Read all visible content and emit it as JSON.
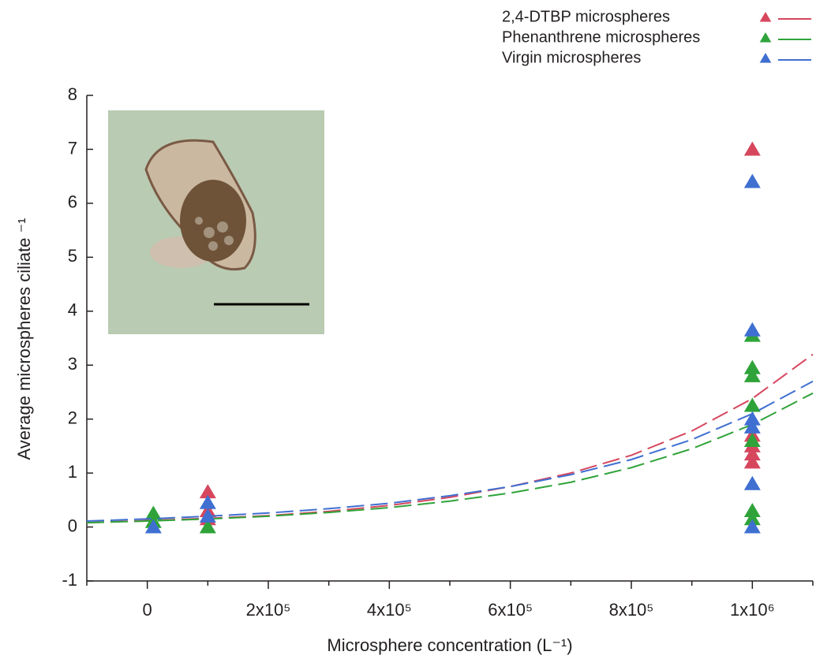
{
  "chart_data": {
    "type": "scatter",
    "xlabel": "Microsphere concentration (L⁻¹)",
    "ylabel": "Average microspheres ciliate ⁻¹",
    "xlim": [
      -100000,
      1100000
    ],
    "ylim": [
      -1,
      8
    ],
    "xticks": [
      {
        "value": 0,
        "label": "0"
      },
      {
        "value": 200000,
        "label": "2x10⁵"
      },
      {
        "value": 400000,
        "label": "4x10⁵"
      },
      {
        "value": 600000,
        "label": "6x10⁵"
      },
      {
        "value": 800000,
        "label": "8x10⁵"
      },
      {
        "value": 1000000,
        "label": "1x10⁶"
      }
    ],
    "xticks_minor": [
      -100000,
      100000,
      300000,
      500000,
      700000,
      900000,
      1100000
    ],
    "yticks": [
      -1,
      0,
      1,
      2,
      3,
      4,
      5,
      6,
      7,
      8
    ],
    "series": [
      {
        "name": "2,4-DTBP microspheres",
        "color": "#d6475e",
        "x": [
          100000,
          100000,
          100000,
          1000000,
          1000000,
          1000000,
          1000000,
          1000000
        ],
        "values": [
          0.65,
          0.3,
          0.15,
          7.0,
          1.7,
          1.5,
          1.35,
          1.2
        ],
        "fit": {
          "x": [
            -100000,
            0,
            100000,
            200000,
            300000,
            400000,
            500000,
            600000,
            700000,
            800000,
            900000,
            1000000,
            1100000
          ],
          "values": [
            0.08,
            0.12,
            0.16,
            0.21,
            0.29,
            0.4,
            0.55,
            0.75,
            1.0,
            1.33,
            1.78,
            2.38,
            3.2
          ]
        }
      },
      {
        "name": "Phenanthrene microspheres",
        "color": "#2fa33a",
        "x": [
          10000,
          10000,
          100000,
          1000000,
          1000000,
          1000000,
          1000000,
          1000000,
          1000000,
          1000000
        ],
        "values": [
          0.25,
          0.1,
          0.0,
          3.55,
          2.95,
          2.8,
          2.25,
          1.6,
          0.3,
          0.15
        ],
        "fit": {
          "x": [
            -100000,
            0,
            100000,
            200000,
            300000,
            400000,
            500000,
            600000,
            700000,
            800000,
            900000,
            1000000,
            1100000
          ],
          "values": [
            0.08,
            0.11,
            0.15,
            0.2,
            0.27,
            0.36,
            0.48,
            0.63,
            0.83,
            1.1,
            1.45,
            1.9,
            2.48
          ]
        }
      },
      {
        "name": "Virgin microspheres",
        "color": "#3f6fd1",
        "x": [
          10000,
          100000,
          100000,
          1000000,
          1000000,
          1000000,
          1000000,
          1000000,
          1000000
        ],
        "values": [
          0.0,
          0.45,
          0.2,
          6.4,
          3.65,
          2.0,
          1.85,
          0.8,
          0.0
        ],
        "fit": {
          "x": [
            -100000,
            0,
            100000,
            200000,
            300000,
            400000,
            500000,
            600000,
            700000,
            800000,
            900000,
            1000000,
            1100000
          ],
          "values": [
            0.11,
            0.15,
            0.2,
            0.26,
            0.34,
            0.44,
            0.58,
            0.75,
            0.97,
            1.25,
            1.62,
            2.1,
            2.7
          ]
        }
      }
    ]
  }
}
